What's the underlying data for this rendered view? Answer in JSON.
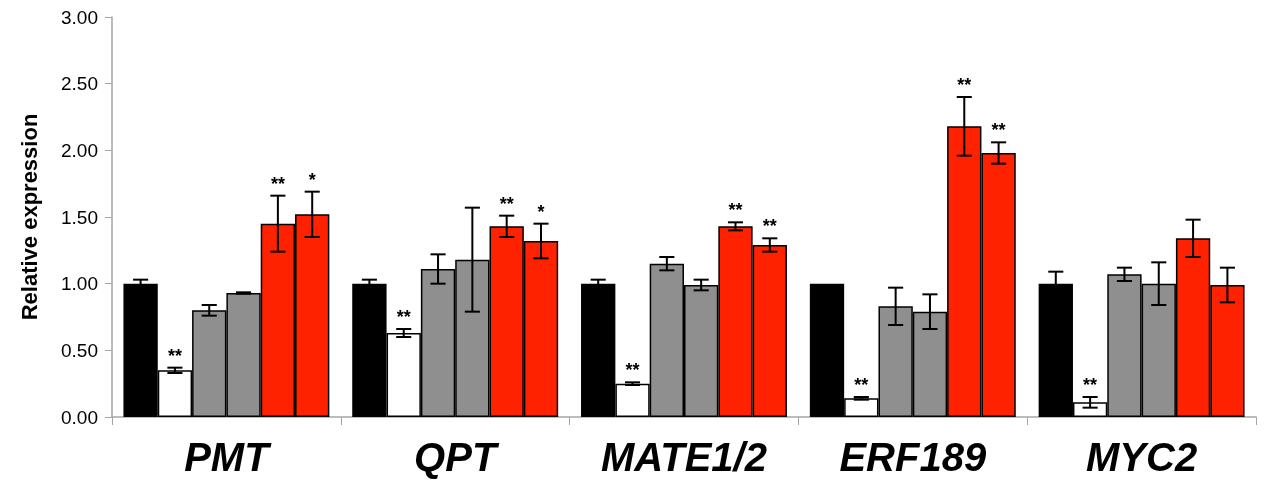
{
  "chart_data": {
    "type": "bar",
    "ylabel": "Relative expression",
    "categories": [
      "PMT",
      "QPT",
      "MATE1/2",
      "ERF189",
      "MYC2"
    ],
    "series": [
      {
        "color": "#000000",
        "values": [
          1.0,
          1.0,
          1.0,
          1.0,
          1.0
        ],
        "errors": [
          0.03,
          0.03,
          0.03,
          null,
          0.09
        ]
      },
      {
        "color": "#ffffff",
        "values": [
          0.35,
          0.63,
          0.25,
          0.14,
          0.11
        ],
        "errors": [
          0.02,
          0.03,
          0.01,
          0.01,
          0.04
        ],
        "value_labels": [
          "**",
          "**",
          "**",
          "**",
          "**"
        ]
      },
      {
        "color": "#8f8f8f",
        "values": [
          0.8,
          1.11,
          1.15,
          0.83,
          1.07
        ],
        "errors": [
          0.04,
          0.11,
          0.05,
          0.14,
          0.05
        ]
      },
      {
        "color": "#8f8f8f",
        "values": [
          0.93,
          1.18,
          0.99,
          0.79,
          1.0
        ],
        "errors": [
          0.005,
          0.39,
          0.04,
          0.13,
          0.16
        ]
      },
      {
        "color": "#ff2200",
        "values": [
          1.45,
          1.43,
          1.43,
          2.18,
          1.34
        ],
        "errors": [
          0.21,
          0.08,
          0.03,
          0.22,
          0.14
        ],
        "value_labels": [
          "**",
          "**",
          "**",
          "**",
          null
        ]
      },
      {
        "color": "#ff2200",
        "values": [
          1.52,
          1.32,
          1.29,
          1.98,
          0.99
        ],
        "errors": [
          0.17,
          0.13,
          0.05,
          0.08,
          0.13
        ],
        "value_labels": [
          "*",
          "*",
          "**",
          "**",
          null
        ]
      }
    ],
    "ylim": [
      0,
      3
    ],
    "yticks": [
      {
        "value": 0,
        "label": "0.00"
      },
      {
        "value": 0.5,
        "label": "0.50"
      },
      {
        "value": 1,
        "label": "1.00"
      },
      {
        "value": 1.5,
        "label": "1.50"
      },
      {
        "value": 2,
        "label": "2.00"
      },
      {
        "value": 2.5,
        "label": "2.50"
      },
      {
        "value": 3,
        "label": "3.00"
      }
    ],
    "grid": false
  }
}
